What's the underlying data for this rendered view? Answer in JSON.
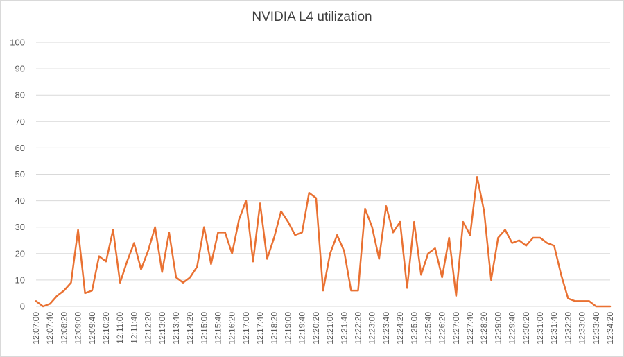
{
  "chart_data": {
    "type": "line",
    "title": "NVIDIA L4 utilization",
    "xlabel": "",
    "ylabel": "",
    "ylim": [
      0,
      100
    ],
    "yticks": [
      0,
      10,
      20,
      30,
      40,
      50,
      60,
      70,
      80,
      90,
      100
    ],
    "grid": true,
    "legend": "none",
    "color": "#E97132",
    "x_tick_labels": [
      "12:07:00",
      "12:07:40",
      "12:08:20",
      "12:09:00",
      "12:09:40",
      "12:10:20",
      "12:11:00",
      "12:11:40",
      "12:12:20",
      "12:13:00",
      "12:13:40",
      "12:14:20",
      "12:15:00",
      "12:15:40",
      "12:16:20",
      "12:17:00",
      "12:17:40",
      "12:18:20",
      "12:19:00",
      "12:19:40",
      "12:20:20",
      "12:21:00",
      "12:21:40",
      "12:22:20",
      "12:23:00",
      "12:23:40",
      "12:24:20",
      "12:25:00",
      "12:25:40",
      "12:26:20",
      "12:27:00",
      "12:27:40",
      "12:28:20",
      "12:29:00",
      "12:29:40",
      "12:30:20",
      "12:31:00",
      "12:31:40",
      "12:32:20",
      "12:33:00",
      "12:33:40",
      "12:34:20"
    ],
    "x_start": "12:07:00",
    "x_interval_seconds": 20,
    "values": [
      2,
      0,
      1,
      4,
      6,
      9,
      29,
      5,
      6,
      19,
      17,
      29,
      9,
      17,
      24,
      14,
      21,
      30,
      13,
      28,
      11,
      9,
      11,
      15,
      30,
      16,
      28,
      28,
      20,
      33,
      40,
      17,
      39,
      18,
      26,
      36,
      32,
      27,
      28,
      43,
      41,
      6,
      20,
      27,
      21,
      6,
      6,
      37,
      30,
      18,
      38,
      28,
      32,
      7,
      32,
      12,
      20,
      22,
      11,
      26,
      4,
      32,
      27,
      49,
      36,
      10,
      26,
      29,
      24,
      25,
      23,
      26,
      26,
      24,
      23,
      12,
      3,
      2,
      2,
      2,
      0,
      0,
      0
    ]
  }
}
